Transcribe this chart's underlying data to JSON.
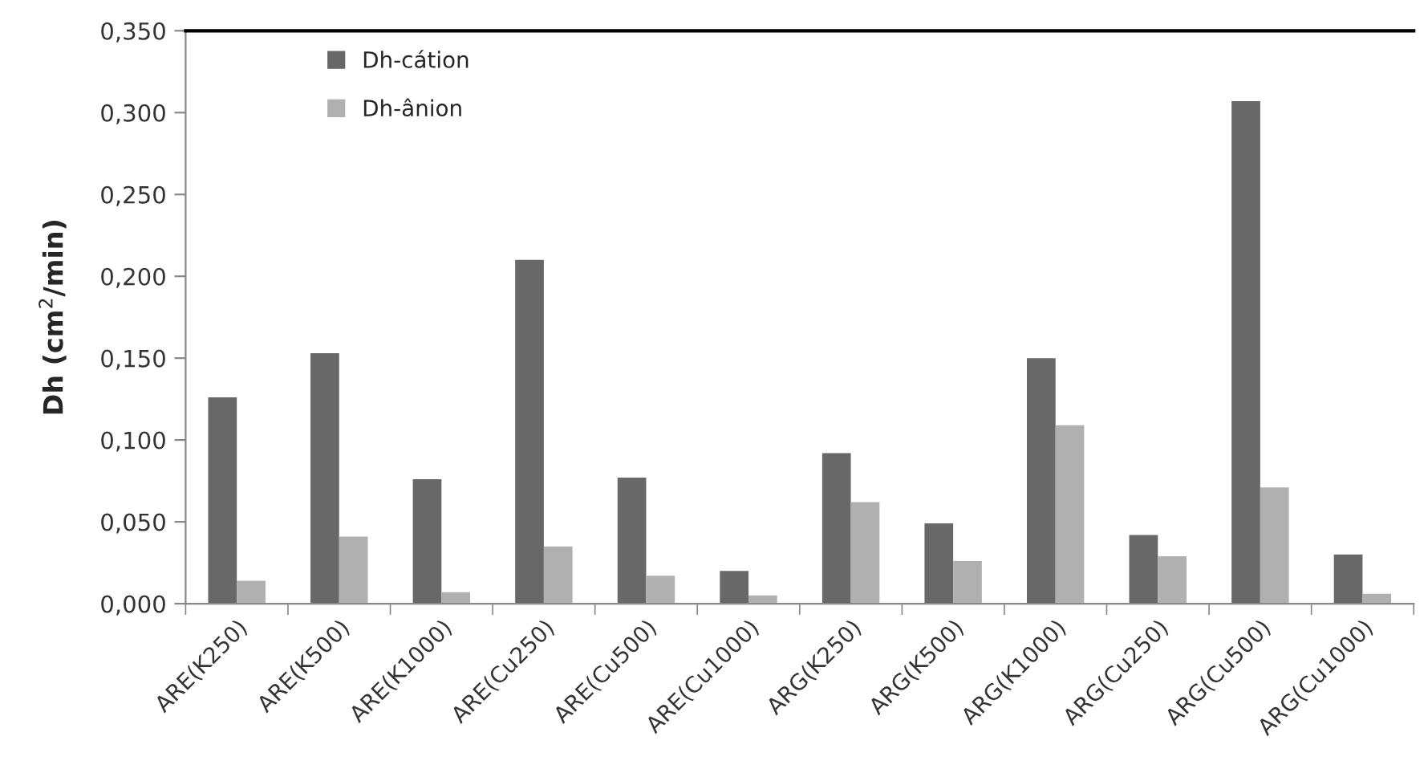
{
  "chart_data": {
    "type": "bar",
    "ylabel": "Dh (cm$^{2}$/min)",
    "categories": [
      "ARE(K250)",
      "ARE(K500)",
      "ARE(K1000)",
      "ARE(Cu250)",
      "ARE(Cu500)",
      "ARE(Cu1000)",
      "ARG(K250)",
      "ARG(K500)",
      "ARG(K1000)",
      "ARG(Cu250)",
      "ARG(Cu500)",
      "ARG(Cu1000)"
    ],
    "series": [
      {
        "name": "Dh-cátion",
        "color": "#686868",
        "values": [
          0.126,
          0.153,
          0.076,
          0.21,
          0.077,
          0.02,
          0.092,
          0.049,
          0.15,
          0.042,
          0.307,
          0.03
        ]
      },
      {
        "name": "Dh-ânion",
        "color": "#b0b0b0",
        "values": [
          0.014,
          0.041,
          0.007,
          0.035,
          0.017,
          0.005,
          0.062,
          0.026,
          0.109,
          0.029,
          0.071,
          0.006
        ]
      }
    ],
    "ylim": [
      0,
      0.35
    ],
    "yticks": [
      {
        "value": 0,
        "label": "0,000"
      },
      {
        "value": 0.05,
        "label": "0,050"
      },
      {
        "value": 0.1,
        "label": "0,100"
      },
      {
        "value": 0.15,
        "label": "0,150"
      },
      {
        "value": 0.2,
        "label": "0,200"
      },
      {
        "value": 0.25,
        "label": "0,250"
      },
      {
        "value": 0.3,
        "label": "0,300"
      },
      {
        "value": 0.35,
        "label": "0,350"
      }
    ],
    "grid": false,
    "legend": "top left"
  }
}
